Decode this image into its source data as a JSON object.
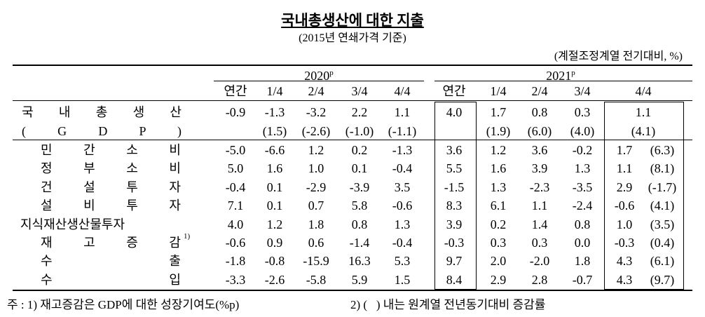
{
  "title": "국내총생산에 대한 지출",
  "subtitle": "(2015년 연쇄가격 기준)",
  "unit": "(계절조정계열 전기대비, %)",
  "years": [
    {
      "label": "2020",
      "sup": "p"
    },
    {
      "label": "2021",
      "sup": "p"
    }
  ],
  "columns": [
    "연간",
    "1/4",
    "2/4",
    "3/4",
    "4/4",
    "연간",
    "1/4",
    "2/4",
    "3/4",
    "4/4"
  ],
  "gdp": {
    "label": "국 내 총 생 산",
    "values": [
      "-0.9",
      "-1.3",
      "-3.2",
      "2.2",
      "1.1",
      "4.0",
      "1.7",
      "0.8",
      "0.3",
      "1.1"
    ],
    "sub_label": "( G D P )",
    "sub_values": [
      null,
      "(1.5)",
      "(-2.6)",
      "(-1.0)",
      "(-1.1)",
      null,
      "(1.9)",
      "(6.0)",
      "(4.0)",
      "(4.1)"
    ]
  },
  "rows": [
    {
      "label": "민 간 소 비",
      "values": [
        "-5.0",
        "-6.6",
        "1.2",
        "0.2",
        "-1.3",
        "3.6",
        "1.2",
        "3.6",
        "-0.2",
        "1.7"
      ],
      "yoy": "(6.3)"
    },
    {
      "label": "정 부 소 비",
      "values": [
        "5.0",
        "1.6",
        "1.0",
        "0.1",
        "-0.4",
        "5.5",
        "1.6",
        "3.9",
        "1.3",
        "1.1"
      ],
      "yoy": "(8.1)"
    },
    {
      "label": "건 설 투 자",
      "values": [
        "-0.4",
        "0.1",
        "-2.9",
        "-3.9",
        "3.5",
        "-1.5",
        "1.3",
        "-2.3",
        "-3.5",
        "2.9"
      ],
      "yoy": "(-1.7)"
    },
    {
      "label": "설 비 투 자",
      "values": [
        "7.1",
        "0.1",
        "0.7",
        "5.8",
        "-0.6",
        "8.3",
        "6.1",
        "1.1",
        "-2.4",
        "-0.6"
      ],
      "yoy": "(4.1)"
    },
    {
      "label": "지식재산생산물투자",
      "values": [
        "4.0",
        "1.2",
        "1.8",
        "0.8",
        "1.3",
        "3.9",
        "0.2",
        "1.4",
        "0.8",
        "1.0"
      ],
      "yoy": "(3.5)"
    },
    {
      "label": "재 고 증 감",
      "sup": "1)",
      "values": [
        "-0.6",
        "0.9",
        "0.6",
        "-1.4",
        "-0.4",
        "-0.3",
        "0.3",
        "0.3",
        "0.0",
        "-0.3"
      ],
      "yoy": "(0.4)"
    },
    {
      "label": "수 출",
      "values": [
        "-1.8",
        "-0.8",
        "-15.9",
        "16.3",
        "5.3",
        "9.7",
        "2.0",
        "-2.0",
        "1.8",
        "4.3"
      ],
      "yoy": "(6.1)"
    },
    {
      "label": "수 입",
      "values": [
        "-3.3",
        "-2.6",
        "-5.8",
        "5.9",
        "1.5",
        "8.4",
        "2.9",
        "2.8",
        "-0.7",
        "4.3"
      ],
      "yoy": "(9.7)"
    }
  ],
  "notes": [
    "주 : 1) 재고증감은 GDP에 대한 성장기여도(%p)",
    "2) (   ) 내는 원계열 전년동기대비 증감률"
  ]
}
